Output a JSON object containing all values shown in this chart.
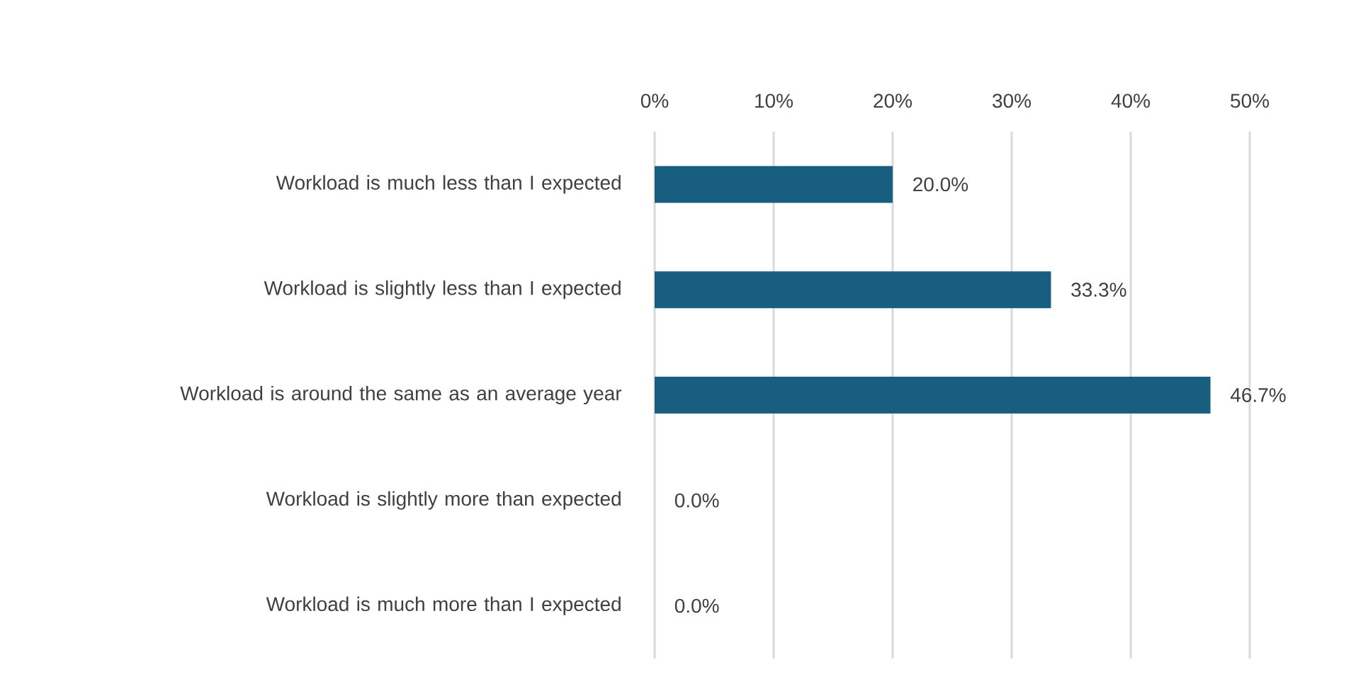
{
  "chart_data": {
    "type": "bar",
    "orientation": "horizontal",
    "categories": [
      "Workload is much less than I expected",
      "Workload is slightly less than I expected",
      "Workload is around the same as an average year",
      "Workload is slightly more than expected",
      "Workload is much more than I expected"
    ],
    "values": [
      20.0,
      33.3,
      46.7,
      0.0,
      0.0
    ],
    "value_labels": [
      "20.0%",
      "33.3%",
      "46.7%",
      "0.0%",
      "0.0%"
    ],
    "color": "#175e7f",
    "xlim": [
      0,
      50
    ],
    "xticks": [
      {
        "value": 0,
        "label": "0%"
      },
      {
        "value": 10,
        "label": "10%"
      },
      {
        "value": 20,
        "label": "20%"
      },
      {
        "value": 30,
        "label": "30%"
      },
      {
        "value": 40,
        "label": "40%"
      },
      {
        "value": 50,
        "label": "50%"
      }
    ],
    "grid": "x"
  }
}
